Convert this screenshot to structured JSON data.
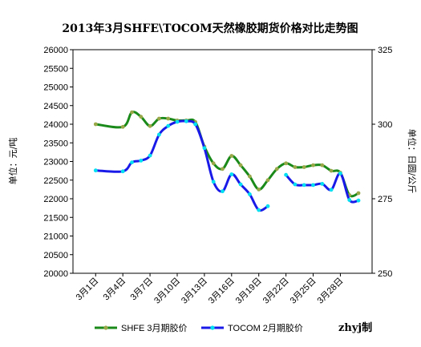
{
  "chart_data": {
    "type": "line",
    "title": "2013年3月SHFE\\TOCOM天然橡胶期货价格对比走势图",
    "ylabel_left": "单位：元/吨",
    "ylabel_right": "单位：日圆/公斤",
    "ylim_left": [
      20000,
      26000
    ],
    "ylim_right": [
      250,
      325
    ],
    "y_ticks_left": [
      "26000",
      "25500",
      "25000",
      "24500",
      "24000",
      "23500",
      "23000",
      "22500",
      "22000",
      "21500",
      "21000",
      "20500",
      "20000"
    ],
    "y_ticks_right": [
      "325",
      "300",
      "275",
      "250"
    ],
    "x_tick_labels": [
      "3月1日",
      "3月4日",
      "3月7日",
      "3月10日",
      "3月13日",
      "3月16日",
      "3月19日",
      "3月22日",
      "3月25日",
      "3月28日"
    ],
    "x_tick_days": [
      1,
      4,
      7,
      10,
      13,
      16,
      19,
      22,
      25,
      28
    ],
    "xlim": [
      -1.5,
      31.5
    ],
    "grid": false,
    "legend_position": "bottom",
    "credit": "zhyj制",
    "series": [
      {
        "name": "SHFE 3月期胶价",
        "axis": "left",
        "color": "#1a8a1a",
        "marker_color": "#9aa84a",
        "x": [
          1,
          4,
          5,
          6,
          7,
          8,
          9,
          10,
          11,
          12,
          13,
          14,
          15,
          16,
          17,
          18,
          19,
          20,
          21,
          22,
          23,
          24,
          25,
          26,
          27,
          28,
          29,
          30
        ],
        "y": [
          24000,
          23930,
          24320,
          24200,
          23950,
          24150,
          24150,
          24100,
          24100,
          24060,
          23400,
          22950,
          22800,
          23150,
          22900,
          22600,
          22250,
          22500,
          22800,
          22950,
          22850,
          22850,
          22900,
          22900,
          22750,
          22700,
          22100,
          22150
        ]
      },
      {
        "name": "TOCOM 2月期胶价",
        "axis": "right",
        "color": "#1a1ae8",
        "marker_color": "#00e0f0",
        "x": [
          1,
          4,
          5,
          6,
          7,
          8,
          9,
          10,
          11,
          12,
          13,
          14,
          15,
          16,
          17,
          18,
          19,
          20
        ],
        "y": [
          284.5,
          284.2,
          287.2,
          287.8,
          289.5,
          296.5,
          299.4,
          300.8,
          301.0,
          300.0,
          292.0,
          280.7,
          277.5,
          283.2,
          279.8,
          276.5,
          271.2,
          272.5
        ],
        "x2": [
          22,
          23,
          24,
          25,
          26,
          27,
          28,
          29,
          30
        ],
        "y2": [
          283.0,
          279.8,
          279.6,
          279.6,
          280.0,
          278.0,
          283.5,
          274.6,
          274.4
        ]
      }
    ]
  }
}
